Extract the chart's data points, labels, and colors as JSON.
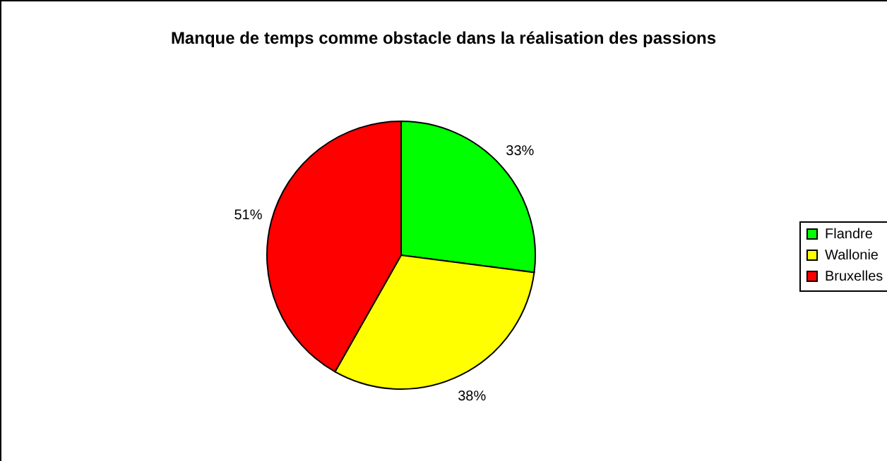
{
  "chart_data": {
    "type": "pie",
    "title": "Manque de temps comme obstacle dans la réalisation des passions",
    "categories": [
      "Flandre",
      "Wallonie",
      "Bruxelles"
    ],
    "values": [
      33,
      38,
      51
    ],
    "value_labels": [
      "33%",
      "38%",
      "51%"
    ],
    "colors": [
      "#00ff00",
      "#ffff00",
      "#ff0000"
    ],
    "legend": "right"
  }
}
